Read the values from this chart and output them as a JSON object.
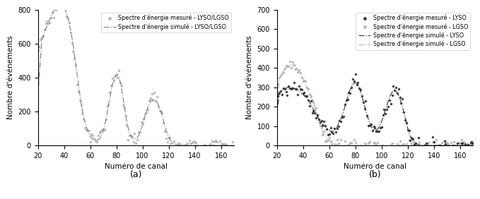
{
  "fig_width": 6.79,
  "fig_height": 2.82,
  "dpi": 100,
  "ax1": {
    "xlim": [
      20,
      170
    ],
    "ylim": [
      0,
      800
    ],
    "xticks": [
      20,
      40,
      60,
      80,
      100,
      120,
      140,
      160
    ],
    "yticks": [
      0,
      200,
      400,
      600,
      800
    ],
    "xlabel": "Numéro de canal",
    "ylabel": "Nombre d'événements",
    "label_a": "(a)",
    "legend": [
      {
        "label": "Spectre d'énergie mesuré - LYSO/LGSO"
      },
      {
        "label": "Spectre d'énergie simulé - LYSO/LGSO"
      }
    ]
  },
  "ax2": {
    "xlim": [
      20,
      170
    ],
    "ylim": [
      0,
      700
    ],
    "xticks": [
      20,
      40,
      60,
      80,
      100,
      120,
      140,
      160
    ],
    "yticks": [
      0,
      100,
      200,
      300,
      400,
      500,
      600,
      700
    ],
    "xlabel": "Numéro de canal",
    "ylabel": "Nombre d'événements",
    "label_b": "(b)",
    "legend": [
      {
        "label": "Spectre d'énergie mesuré - LYSO"
      },
      {
        "label": "Spectre d'énergie mesuré - LGSO"
      },
      {
        "label": "Spectre d'énergie simulé - LYSO"
      },
      {
        "label": "Spectre d'énergie simulé - LGSO"
      }
    ]
  }
}
